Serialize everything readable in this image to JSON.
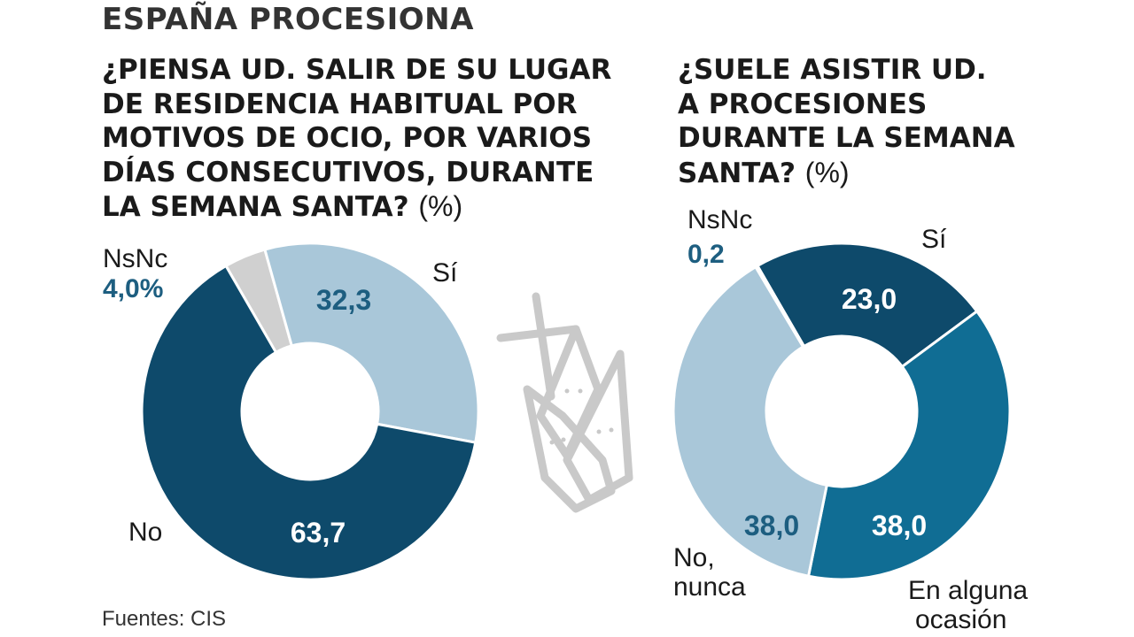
{
  "header": "ESPAÑA PROCESIONA",
  "source": "Fuentes: CIS",
  "colors": {
    "dark_navy": "#0e4a6b",
    "teal": "#106d94",
    "light_blue": "#a9c7d9",
    "grey": "#d0d0d0",
    "illustration": "#c9c9c9"
  },
  "illustration": "nazareno-capirote-and-cross-icon",
  "chart_data": [
    {
      "type": "pie",
      "donut": true,
      "title": "¿PIENSA UD. SALIR DE SU LUGAR\nDE RESIDENCIA HABITUAL POR\nMOTIVOS DE OCIO, POR VARIOS\nDÍAS CONSECUTIVOS, DURANTE\nLA SEMANA SANTA?",
      "unit": "(%)",
      "slices": [
        {
          "label": "Sí",
          "value": 32.3,
          "value_text": "32,3",
          "color": "#a9c7d9"
        },
        {
          "label": "No",
          "value": 63.7,
          "value_text": "63,7",
          "color": "#0e4a6b"
        },
        {
          "label": "NsNc",
          "value": 4.0,
          "value_text": "4,0%",
          "color": "#d0d0d0"
        }
      ]
    },
    {
      "type": "pie",
      "donut": true,
      "title": "¿SUELE ASISTIR UD.\nA PROCESIONES\nDURANTE LA SEMANA\nSANTA?",
      "unit": "(%)",
      "slices": [
        {
          "label": "Sí",
          "value": 23.0,
          "value_text": "23,0",
          "color": "#0e4a6b"
        },
        {
          "label": "En alguna ocasión",
          "value": 38.0,
          "value_text": "38,0",
          "color": "#106d94"
        },
        {
          "label": "No, nunca",
          "value": 38.0,
          "value_text": "38,0",
          "color": "#a9c7d9"
        },
        {
          "label": "NsNc",
          "value": 0.2,
          "value_text": "0,2",
          "color": "#0e4a6b"
        }
      ]
    }
  ]
}
